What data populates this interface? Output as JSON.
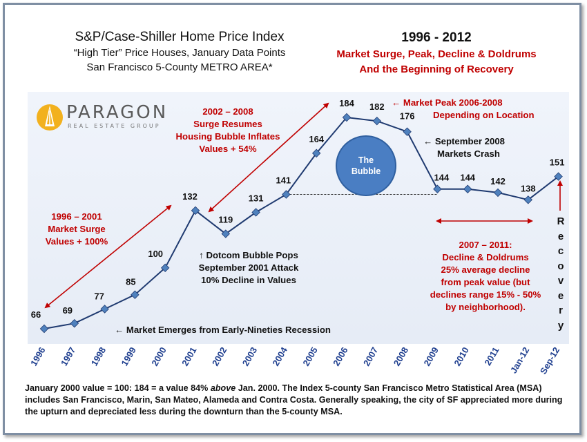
{
  "title": {
    "line1": "S&P/Case-Shiller  Home Price Index",
    "line2": "“High Tier” Price Houses, January Data Points",
    "line3": "San Francisco 5-County METRO AREA*"
  },
  "right_title": {
    "line1": "1996 - 2012",
    "line2": "Market Surge, Peak, Decline & Doldrums",
    "line3": "And the Beginning of Recovery"
  },
  "logo": {
    "name": "PARAGON",
    "sub": "REAL ESTATE GROUP"
  },
  "annotations": {
    "surge_2002": [
      "2002 – 2008",
      "Surge Resumes",
      "Housing Bubble Inflates",
      "Values + 54%"
    ],
    "surge_1996": [
      "1996 – 2001",
      "Market Surge",
      "Values + 100%"
    ],
    "peak": [
      "← Market Peak 2006-2008",
      "Depending on Location"
    ],
    "crash": [
      "← September 2008",
      "Markets Crash"
    ],
    "dotcom": [
      "↑ Dotcom Bubble Pops",
      "September 2001 Attack",
      "10% Decline in Values"
    ],
    "decline": [
      "2007 – 2011:",
      "Decline & Doldrums",
      "25% average decline",
      "from peak value (but",
      "declines range 15% - 50%",
      "by neighborhood)."
    ],
    "emerges": "← Market Emerges from Early-Nineties Recession",
    "bubble": [
      "The",
      "Bubble"
    ],
    "recovery": [
      "R",
      "e",
      "c",
      "o",
      "v",
      "e",
      "r",
      "y"
    ]
  },
  "footnote": {
    "part1": "January 2000 value = 100: 184 = a value 84% ",
    "italic": "above",
    "part2": " Jan. 2000. The Index 5-county San Francisco Metro Statistical Area (MSA) includes San Francisco, Marin, San Mateo, Alameda and Contra Costa. Generally speaking, the city of SF appreciated more during the upturn and depreciated less during the downturn than the 5-county MSA."
  },
  "colors": {
    "line": "#1f3a70",
    "marker": "#4f81bd",
    "axis_label": "#1f3f8f",
    "annotation_red": "#c00000",
    "bubble": "#4a7ec3"
  },
  "chart_data": {
    "type": "line",
    "title": "S&P/Case-Shiller  Home Price Index",
    "categories": [
      "1996",
      "1997",
      "1998",
      "1999",
      "2000",
      "2001",
      "2002",
      "2003",
      "2004",
      "2005",
      "2006",
      "2007",
      "2008",
      "2009",
      "2010",
      "2011",
      "Jan-12",
      "Sep-12"
    ],
    "series": [
      {
        "values": [
          66,
          69,
          77,
          85,
          100,
          132,
          119,
          131,
          141,
          164,
          184,
          182,
          176,
          144,
          144,
          142,
          138,
          151
        ]
      }
    ],
    "data_labels": [
      "66",
      "69",
      "77",
      "85",
      "100",
      "132",
      "119",
      "131",
      "141",
      "164",
      "184",
      "182",
      "176",
      "144",
      "144",
      "142",
      "138",
      "151"
    ],
    "ylim": [
      60,
      190
    ],
    "grid": false,
    "legend": "none",
    "reference_line": {
      "value": 141,
      "from": "2004",
      "to": "2009",
      "style": "dashed"
    }
  }
}
